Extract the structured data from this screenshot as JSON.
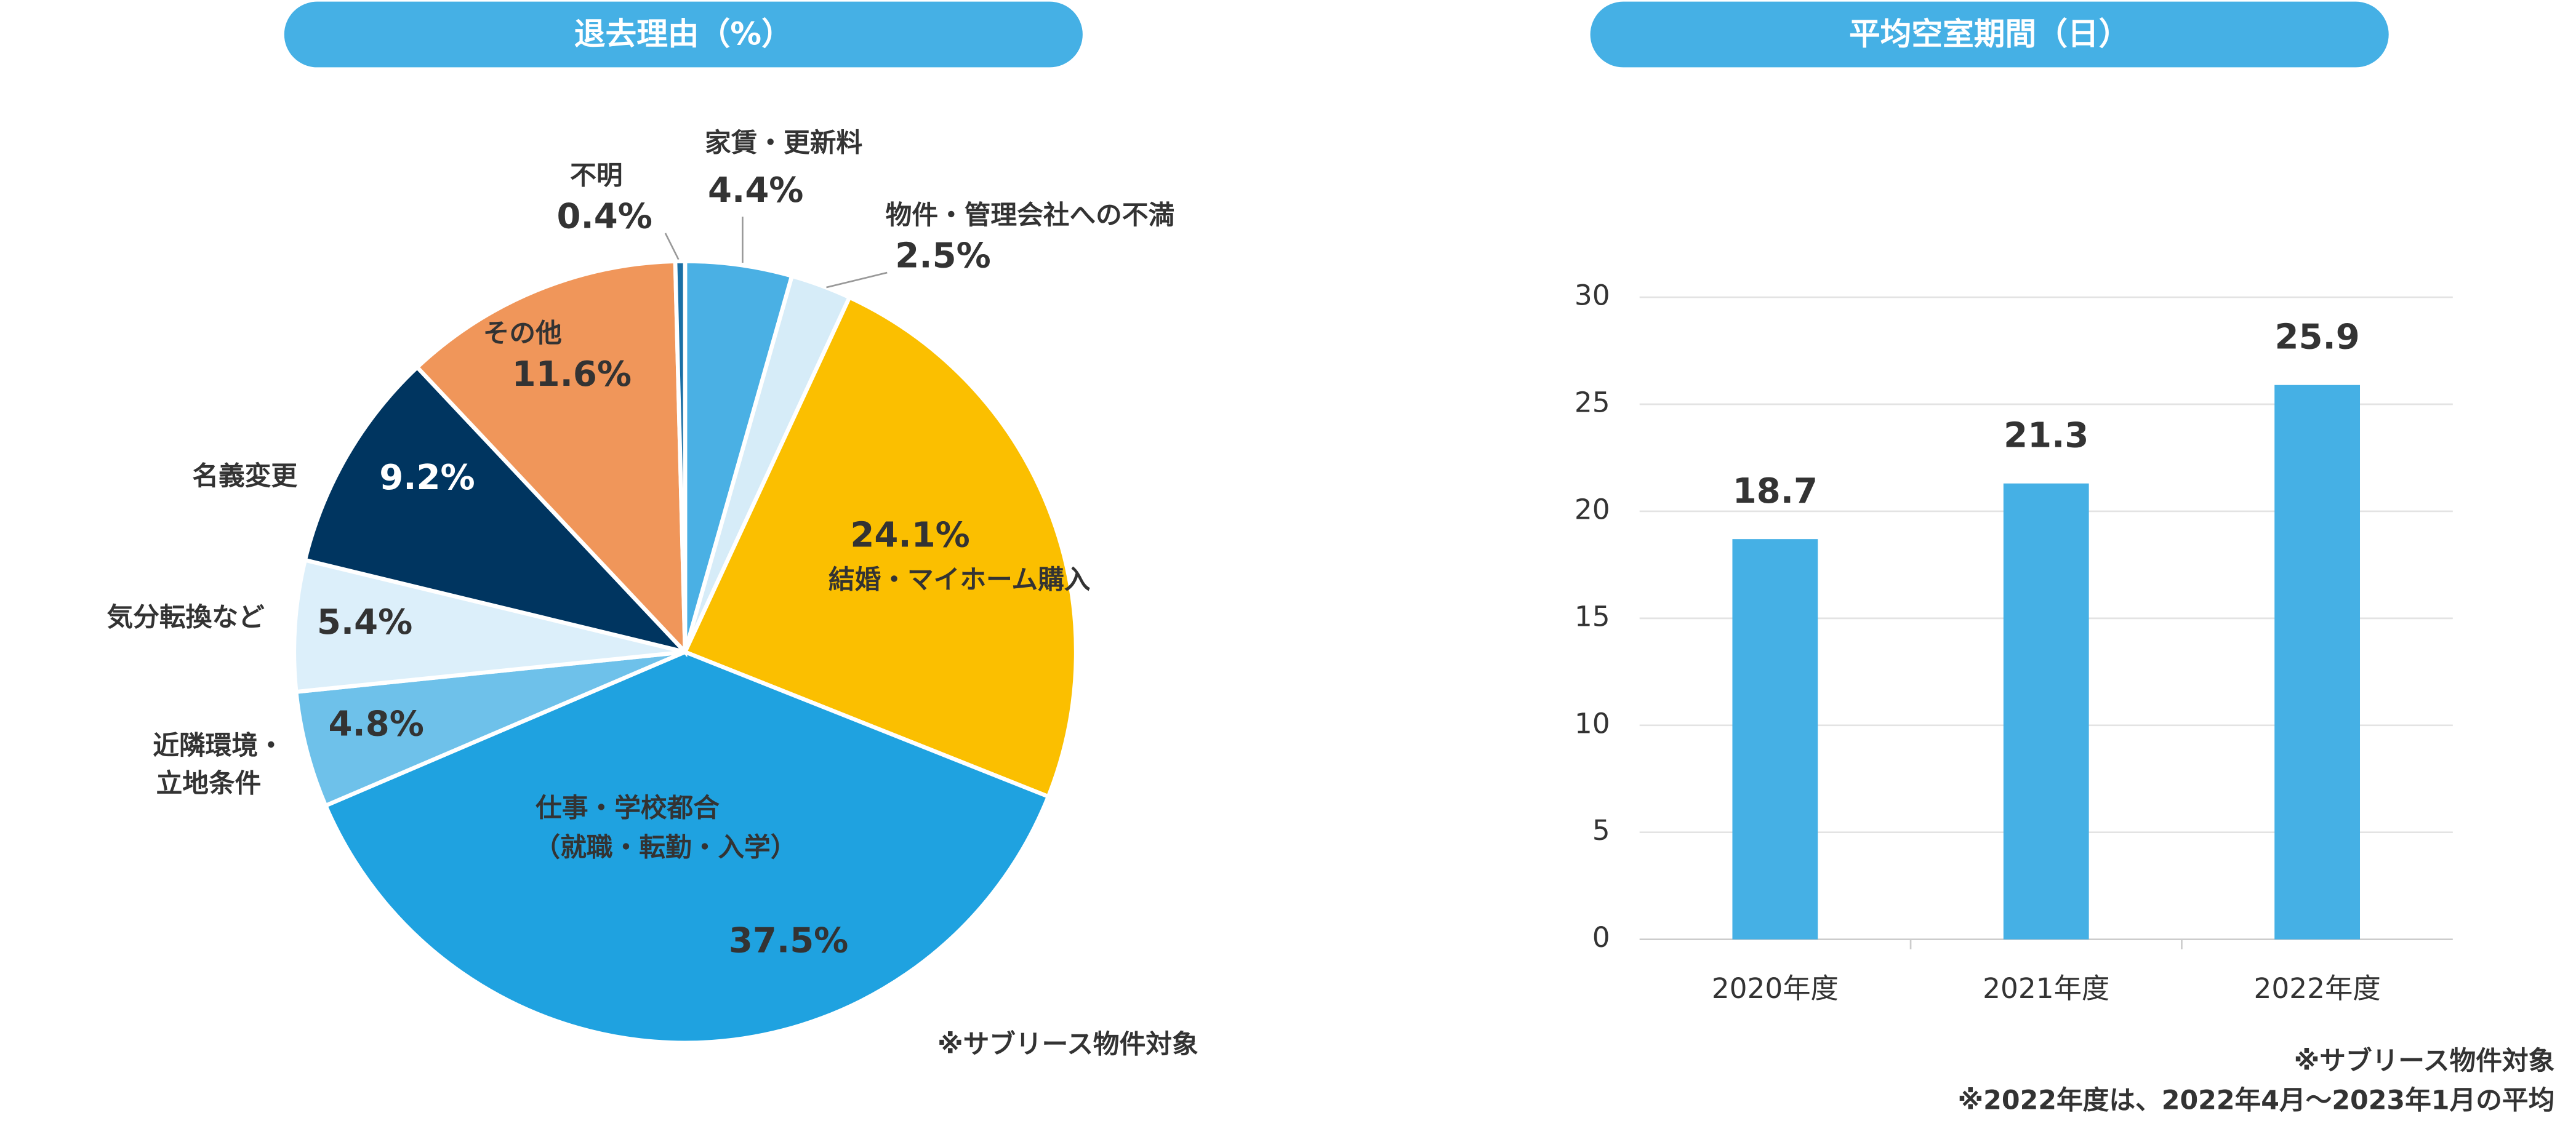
{
  "chart_data": [
    {
      "type": "pie",
      "title": "退去理由（%）",
      "categories": [
        [
          "家賃・更新料"
        ],
        [
          "物件・管理会社への不満"
        ],
        [
          "結婚・マイホーム購入"
        ],
        [
          "仕事・学校都合",
          "（就職・転勤・入学）"
        ],
        [
          "近隣環境・",
          "立地条件"
        ],
        [
          "気分転換など"
        ],
        [
          "名義変更"
        ],
        [
          "その他"
        ],
        [
          "不明"
        ]
      ],
      "values": [
        4.4,
        2.5,
        24.1,
        37.5,
        4.8,
        5.4,
        9.2,
        11.6,
        0.4
      ],
      "value_labels": [
        "4.4%",
        "2.5%",
        "24.1%",
        "37.5%",
        "4.8%",
        "5.4%",
        "9.2%",
        "11.6%",
        "0.4%"
      ],
      "colors": [
        "#4ab0e4",
        "#d6ecf8",
        "#fbbf00",
        "#1fa2e0",
        "#6ec1ea",
        "#dceffa",
        "#003560",
        "#f0965a",
        "#1a6fa5"
      ],
      "note": "※サブリース物件対象"
    },
    {
      "type": "bar",
      "title": "平均空室期間（日）",
      "categories": [
        "2020年度",
        "2021年度",
        "2022年度"
      ],
      "values": [
        18.7,
        21.3,
        25.9
      ],
      "color": "#45b0e5",
      "ylim": [
        0,
        30
      ],
      "yticks": [
        0,
        5,
        10,
        15,
        20,
        25,
        30
      ],
      "grid": true,
      "notes": [
        "※サブリース物件対象",
        "※2022年度は、2022年4月～2023年1月の平均"
      ]
    }
  ]
}
